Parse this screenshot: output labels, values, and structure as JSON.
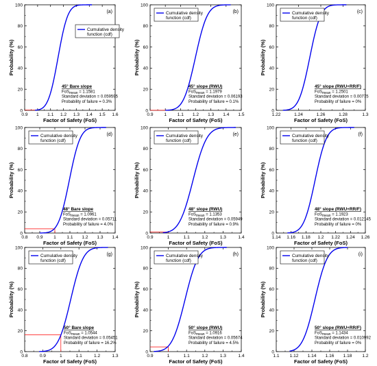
{
  "chart_data": [
    {
      "type": "line",
      "panel_label": "(a)",
      "xlabel": "Factor of Safety (FoS)",
      "ylabel": "Probability (%)",
      "xlim": [
        0.9,
        1.6
      ],
      "xticks": [
        "0.9",
        "1",
        "1.1",
        "1.2",
        "1.3",
        "1.4",
        "1.5",
        "1.6"
      ],
      "ylim": [
        0,
        100
      ],
      "yticks": [
        "0",
        "20",
        "40",
        "60",
        "80",
        "100"
      ],
      "legend": "Cumulative density function (cdf)",
      "legend_position": "top-right",
      "stats": {
        "title": "45° Bare slope",
        "fos_prefix": "FoS",
        "fos_sub": "mean",
        "fos_value": " = 1.1581",
        "sd": "Standard deviation = 0.059595",
        "pf": "Probability of failure = 0.3%"
      },
      "stats_position": "bottom-left",
      "mean": 1.1581,
      "sd": 0.0596,
      "x_start": 0.98,
      "x_end": 1.42,
      "failure_probability": 0.3,
      "failure_line_x": 1.0
    },
    {
      "type": "line",
      "panel_label": "(b)",
      "xlabel": "Factor of Safety (FoS)",
      "ylabel": "Probability (%)",
      "xlim": [
        0.9,
        1.5
      ],
      "xticks": [
        "0.9",
        "1",
        "1.1",
        "1.2",
        "1.3",
        "1.4",
        "1.5"
      ],
      "ylim": [
        0,
        100
      ],
      "yticks": [
        "0",
        "20",
        "40",
        "60",
        "80",
        "100"
      ],
      "legend": "Cumulative density function (cdf)",
      "legend_position": "top-left",
      "stats": {
        "title": "45° slope (RWU)",
        "fos_prefix": "FoS",
        "fos_sub": "mean",
        "fos_value": " = 1.1979",
        "sd": "Standard deviation = 0.06193",
        "pf": "Probability of failure = 0.1%"
      },
      "stats_position": "bottom-right",
      "mean": 1.1979,
      "sd": 0.0619,
      "x_start": 1.0,
      "x_end": 1.43,
      "failure_probability": 0.1,
      "failure_line_x": 1.0
    },
    {
      "type": "line",
      "panel_label": "(c)",
      "xlabel": "Factor of Safety (FoS)",
      "ylabel": "Probability (%)",
      "xlim": [
        1.22,
        1.3
      ],
      "xticks": [
        "1.22",
        "1.24",
        "1.26",
        "1.28",
        "1.3"
      ],
      "ylim": [
        0,
        100
      ],
      "yticks": [
        "0",
        "20",
        "40",
        "60",
        "80",
        "100"
      ],
      "legend": "Cumulative density function (cdf)",
      "legend_position": "top-left",
      "stats": {
        "title": "45° slope (RWU+RR/F)",
        "fos_prefix": "FoS",
        "fos_sub": "mean",
        "fos_value": " = 1.2501",
        "sd": "Standard deviation = 0.00775",
        "pf": "Probability of failure = 0%"
      },
      "stats_position": "bottom-right",
      "mean": 1.2501,
      "sd": 0.00775,
      "x_start": 1.226,
      "x_end": 1.283,
      "failure_probability": 0,
      "failure_line_x": null
    },
    {
      "type": "line",
      "panel_label": "(d)",
      "xlabel": "Factor of Safety (FoS)",
      "ylabel": "Probability (%)",
      "xlim": [
        0.8,
        1.4
      ],
      "xticks": [
        "0.8",
        "0.9",
        "1",
        "1.1",
        "1.2",
        "1.3",
        "1.4"
      ],
      "ylim": [
        0,
        100
      ],
      "yticks": [
        "0",
        "20",
        "40",
        "60",
        "80",
        "100"
      ],
      "legend": "Cumulative density function (cdf)",
      "legend_position": "top-left",
      "stats": {
        "title": "48° Bare slope",
        "fos_prefix": "FoS",
        "fos_sub": "mean",
        "fos_value": " = 1.0961",
        "sd": "Standard deviation = 0.05711",
        "pf": "Probability of failure = 4.0%"
      },
      "stats_position": "bottom-right",
      "mean": 1.0961,
      "sd": 0.0571,
      "x_start": 0.9,
      "x_end": 1.34,
      "failure_probability": 4.0,
      "failure_line_x": 1.0
    },
    {
      "type": "line",
      "panel_label": "(e)",
      "xlabel": "Factor of Safety (FoS)",
      "ylabel": "Probability (%)",
      "xlim": [
        0.9,
        1.4
      ],
      "xticks": [
        "0.9",
        "1",
        "1.1",
        "1.2",
        "1.3",
        "1.4"
      ],
      "ylim": [
        0,
        100
      ],
      "yticks": [
        "0",
        "20",
        "40",
        "60",
        "80",
        "100"
      ],
      "legend": "Cumulative density function (cdf)",
      "legend_position": "top-left",
      "stats": {
        "title": "48° slope (RWU)",
        "fos_prefix": "FoS",
        "fos_sub": "mean",
        "fos_value": " = 1.1353",
        "sd": "Standard deviation = 0.05949",
        "pf": "Probability of failure = 0.9%"
      },
      "stats_position": "bottom-right",
      "mean": 1.1353,
      "sd": 0.0595,
      "x_start": 0.97,
      "x_end": 1.37,
      "failure_probability": 0.9,
      "failure_line_x": 1.0
    },
    {
      "type": "line",
      "panel_label": "(f)",
      "xlabel": "Factor of Safety (FoS)",
      "ylabel": "Probability (%)",
      "xlim": [
        1.14,
        1.26
      ],
      "xticks": [
        "1.14",
        "1.16",
        "1.18",
        "1.2",
        "1.22",
        "1.24",
        "1.26"
      ],
      "ylim": [
        0,
        100
      ],
      "yticks": [
        "0",
        "20",
        "40",
        "60",
        "80",
        "100"
      ],
      "legend": "Cumulative density function (cdf)",
      "legend_position": "top-left",
      "stats": {
        "title": "48° slope (RWU+RR/F)",
        "fos_prefix": "FoS",
        "fos_sub": "mean",
        "fos_value": " = 1.1923",
        "sd": "Standard deviation = 0.012145",
        "pf": "Probability of failure = 0%"
      },
      "stats_position": "bottom-right",
      "mean": 1.1923,
      "sd": 0.0121,
      "x_start": 1.155,
      "x_end": 1.245,
      "failure_probability": 0,
      "failure_line_x": null
    },
    {
      "type": "line",
      "panel_label": "(g)",
      "xlabel": "Factor of Safety (FoS)",
      "ylabel": "Probability (%)",
      "xlim": [
        0.8,
        1.3
      ],
      "xticks": [
        "0.8",
        "0.9",
        "1",
        "1.1",
        "1.2",
        "1.3"
      ],
      "ylim": [
        0,
        100
      ],
      "yticks": [
        "0",
        "20",
        "40",
        "60",
        "80",
        "100"
      ],
      "legend": "Cumulative density function (cdf)",
      "legend_position": "top-left",
      "stats": {
        "title": "50° Bare slope",
        "fos_prefix": "FoS",
        "fos_sub": "mean",
        "fos_value": " = 1.0544",
        "sd": "Standard deviation = 0.05451",
        "pf": "Probability of failure = 16.2%"
      },
      "stats_position": "bottom-center",
      "mean": 1.0544,
      "sd": 0.0545,
      "x_start": 0.88,
      "x_end": 1.26,
      "failure_probability": 16.2,
      "failure_line_x": 1.0
    },
    {
      "type": "line",
      "panel_label": "(h)",
      "xlabel": "Factor of Safety (FoS)",
      "ylabel": "Probability (%)",
      "xlim": [
        0.9,
        1.4
      ],
      "xticks": [
        "0.9",
        "1",
        "1.1",
        "1.2",
        "1.3",
        "1.4"
      ],
      "ylim": [
        0,
        100
      ],
      "yticks": [
        "0",
        "20",
        "40",
        "60",
        "80",
        "100"
      ],
      "legend": "Cumulative density function (cdf)",
      "legend_position": "top-left",
      "stats": {
        "title": "50° slope (RWU)",
        "fos_prefix": "FoS",
        "fos_sub": "mean",
        "fos_value": " = 1.0916",
        "sd": "Standard deviation = 0.05674",
        "pf": "Probability of failure = 4.5%"
      },
      "stats_position": "bottom-right",
      "mean": 1.0916,
      "sd": 0.0567,
      "x_start": 0.92,
      "x_end": 1.32,
      "failure_probability": 4.5,
      "failure_line_x": 1.0
    },
    {
      "type": "line",
      "panel_label": "(i)",
      "xlabel": "Factor of Safety (FoS)",
      "ylabel": "Probability (%)",
      "xlim": [
        1.1,
        1.2
      ],
      "xticks": [
        "1.1",
        "1.12",
        "1.14",
        "1.16",
        "1.18",
        "1.2"
      ],
      "ylim": [
        0,
        100
      ],
      "yticks": [
        "0",
        "20",
        "40",
        "60",
        "80",
        "100"
      ],
      "legend": "Cumulative density function (cdf)",
      "legend_position": "top-left",
      "stats": {
        "title": "50° slope (RWU+RR/F)",
        "fos_prefix": "FoS",
        "fos_sub": "mean",
        "fos_value": " = 1.1434",
        "sd": "Standard deviation = 0.010992",
        "pf": "Probability of failure = 0%"
      },
      "stats_position": "bottom-right",
      "mean": 1.1434,
      "sd": 0.011,
      "x_start": 1.115,
      "x_end": 1.18,
      "failure_probability": 0,
      "failure_line_x": null
    }
  ],
  "colors": {
    "cdf_line": "#0000ee",
    "failure_marker": "#ff0000",
    "axes": "#000000",
    "legend_border": "#000000"
  }
}
